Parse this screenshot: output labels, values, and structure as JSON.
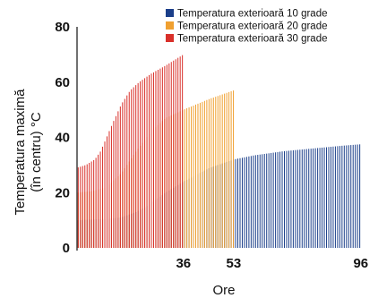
{
  "chart_data": {
    "type": "bar",
    "xlabel": "Ore",
    "ylabel": [
      "Temperatura maximă",
      "(în centru) °C"
    ],
    "ylim": [
      0,
      80
    ],
    "xlim": [
      0,
      100
    ],
    "y_ticks": [
      "0",
      "20",
      "40",
      "60",
      "80"
    ],
    "y_tick_values": [
      0,
      20,
      40,
      60,
      80
    ],
    "x_ticks": [
      "36",
      "53",
      "96"
    ],
    "x_tick_values": [
      36,
      53,
      96
    ],
    "grid": false,
    "legend_position": "top-right",
    "series": [
      {
        "name": "Temperatura exterioară 10 grade",
        "color": "#1b3f8a",
        "x_end": 96,
        "curve": [
          [
            0,
            10
          ],
          [
            10,
            10.5
          ],
          [
            15,
            11
          ],
          [
            20,
            13
          ],
          [
            25,
            16
          ],
          [
            30,
            20
          ],
          [
            36,
            24
          ],
          [
            45,
            29
          ],
          [
            53,
            32
          ],
          [
            60,
            33.5
          ],
          [
            70,
            35
          ],
          [
            80,
            36
          ],
          [
            90,
            37
          ],
          [
            96,
            37.5
          ]
        ]
      },
      {
        "name": "Temperatura exterioară 20 grade",
        "color": "#f0a030",
        "x_end": 53,
        "curve": [
          [
            0,
            20
          ],
          [
            5,
            20.5
          ],
          [
            10,
            22
          ],
          [
            15,
            27
          ],
          [
            20,
            35
          ],
          [
            25,
            42
          ],
          [
            30,
            47
          ],
          [
            36,
            50
          ],
          [
            45,
            54
          ],
          [
            53,
            57
          ]
        ]
      },
      {
        "name": "Temperatura exterioară 30 grade",
        "color": "#d9302a",
        "x_end": 36,
        "curve": [
          [
            0,
            29
          ],
          [
            3,
            30
          ],
          [
            6,
            32
          ],
          [
            8,
            35
          ],
          [
            10,
            40
          ],
          [
            12,
            45
          ],
          [
            15,
            52
          ],
          [
            18,
            57
          ],
          [
            21,
            60
          ],
          [
            25,
            63
          ],
          [
            30,
            66
          ],
          [
            33,
            68
          ],
          [
            36,
            70
          ]
        ]
      }
    ]
  }
}
